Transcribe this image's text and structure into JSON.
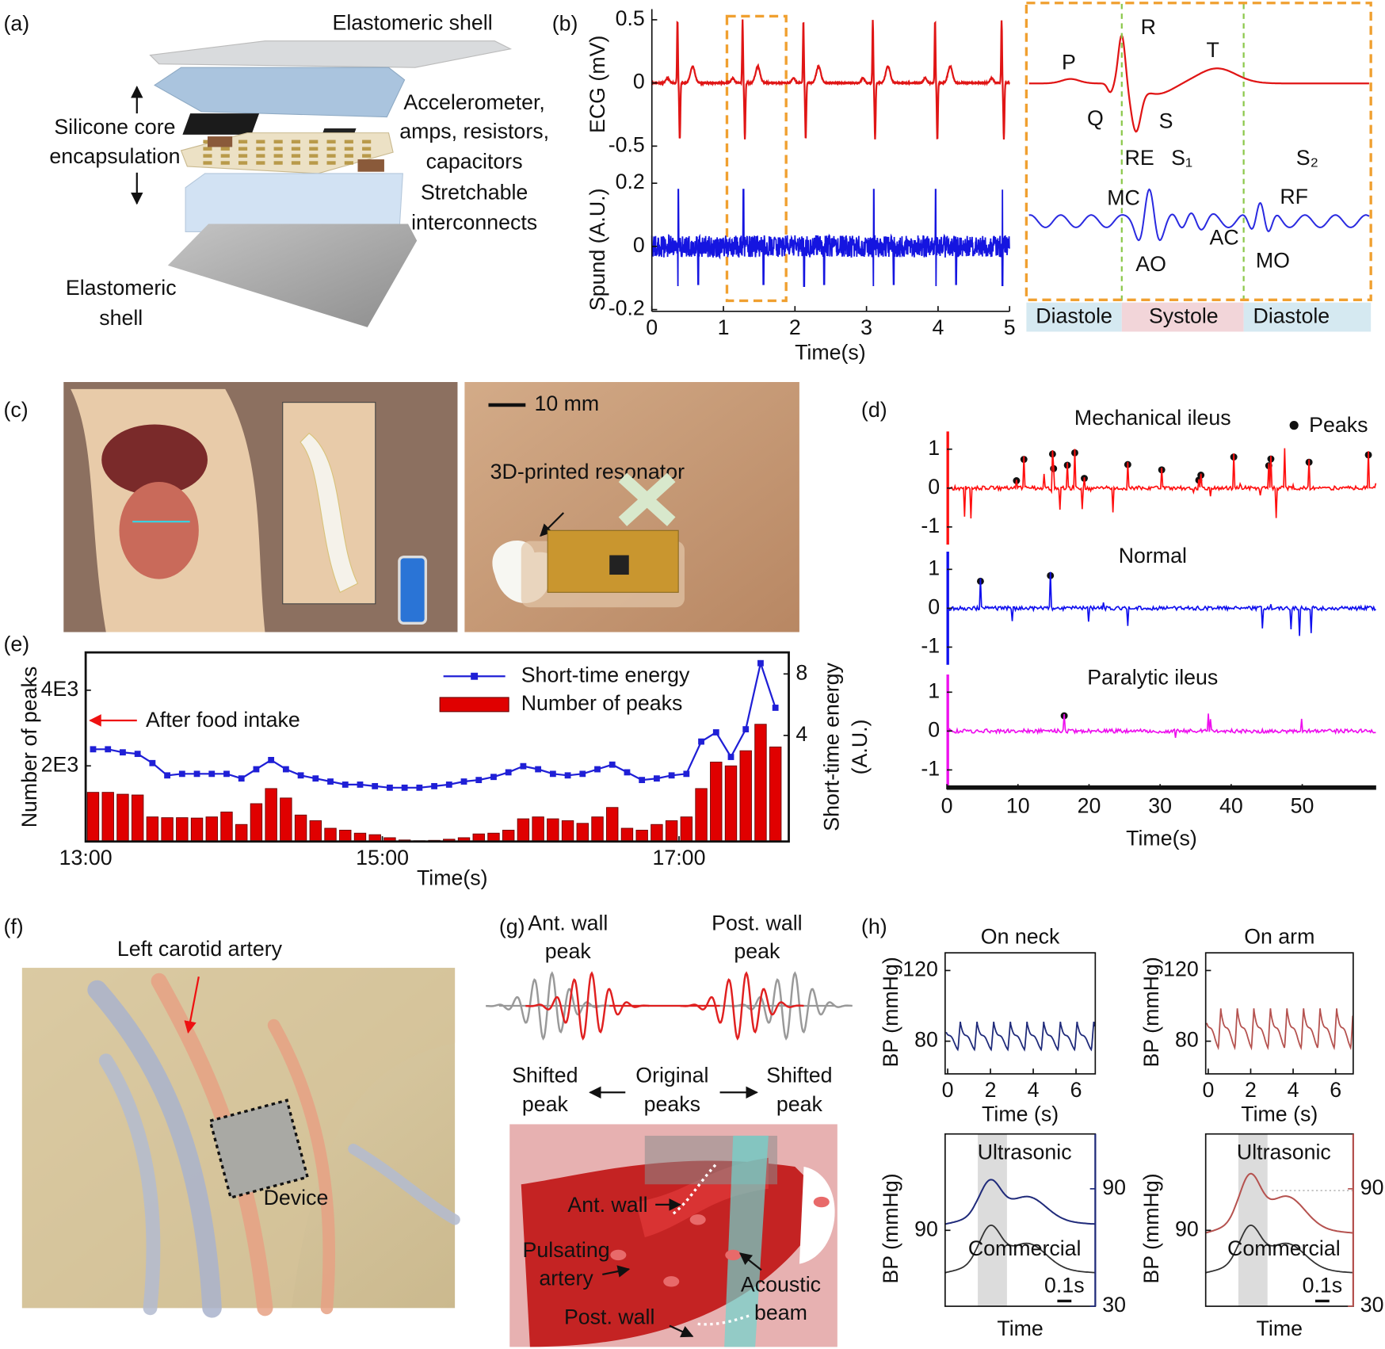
{
  "panels": {
    "a": {
      "label": "(a)",
      "top_shell": "Elastomeric shell",
      "core": [
        "Silicone core",
        "encapsulation"
      ],
      "components": [
        "Accelerometer,",
        "amps, resistors,",
        "capacitors"
      ],
      "interconnects": [
        "Stretchable",
        "interconnects"
      ],
      "bottom_shell": [
        "Elastomeric",
        "shell"
      ]
    },
    "b": {
      "label": "(b)",
      "xlim": [
        0,
        5
      ],
      "xticks": [
        0,
        1,
        2,
        3,
        4,
        5
      ],
      "xlabel": "Time(s)",
      "ecg": {
        "ylabel": "ECG (mV)",
        "ylim": [
          -0.5,
          0.5
        ],
        "yticks": [
          0.5,
          0,
          -0.5
        ]
      },
      "sound": {
        "ylabel": "Spund (A.U.)",
        "ylim": [
          -0.2,
          0.2
        ],
        "yticks": [
          0.2,
          0,
          -0.2
        ]
      },
      "inset_labels": [
        "P",
        "R",
        "T",
        "Q",
        "S",
        "RE",
        "S₁",
        "S₂",
        "MC",
        "RF",
        "AC",
        "AO",
        "MO"
      ],
      "phases": [
        "Diastole",
        "Systole",
        "Diastole"
      ]
    },
    "c": {
      "label": "(c)",
      "scale_bar": "10 mm",
      "resonator": "3D-printed resonator"
    },
    "d": {
      "label": "(d)",
      "legend": "Peaks",
      "xlabel": "Time(s)",
      "xlim": [
        0,
        60.4
      ],
      "xticks": [
        0,
        10,
        20,
        30,
        40,
        50
      ],
      "subplots": [
        {
          "title": "Mechanical ileus",
          "color": "#ff1010",
          "ylim": [
            -1.5,
            1.5
          ],
          "yticks": [
            1,
            0,
            -1
          ]
        },
        {
          "title": "Normal",
          "color": "#1010ee",
          "ylim": [
            -1.5,
            1.5
          ],
          "yticks": [
            1,
            0,
            -1
          ]
        },
        {
          "title": "Paralytic ileus",
          "color": "#ee10ee",
          "ylim": [
            -1.5,
            1.5
          ],
          "yticks": [
            1,
            0,
            -1
          ]
        }
      ]
    },
    "e": {
      "label": "(e)",
      "annotation": "After food intake",
      "chart": {
        "type": "bar",
        "x": [
          13.05,
          13.15,
          13.25,
          13.35,
          13.45,
          13.55,
          13.65,
          13.75,
          13.85,
          13.95,
          14.05,
          14.15,
          14.25,
          14.35,
          14.45,
          14.55,
          14.65,
          14.75,
          14.85,
          14.95,
          15.05,
          15.15,
          15.25,
          15.35,
          15.45,
          15.55,
          15.65,
          15.75,
          15.85,
          15.95,
          16.05,
          16.15,
          16.25,
          16.35,
          16.45,
          16.55,
          16.65,
          16.75,
          16.85,
          16.95,
          17.05,
          17.15,
          17.25,
          17.35,
          17.45,
          17.55,
          17.65
        ],
        "series": [
          {
            "name": "Short-time energy",
            "type": "line",
            "axis": "y2",
            "color": "#1f1fd6",
            "values": [
              3.1,
              3.1,
              2.9,
              2.8,
              2.2,
              1.4,
              1.5,
              1.5,
              1.5,
              1.5,
              1.2,
              1.8,
              2.4,
              1.8,
              1.4,
              1.2,
              1.0,
              0.8,
              0.8,
              0.7,
              0.6,
              0.6,
              0.6,
              0.7,
              0.8,
              1.0,
              1.1,
              1.3,
              1.6,
              2.0,
              1.8,
              1.5,
              1.4,
              1.5,
              1.8,
              2.1,
              1.6,
              1.1,
              1.2,
              1.4,
              1.5,
              3.6,
              4.2,
              2.6,
              4.4,
              8.7,
              5.8
            ]
          },
          {
            "name": "Number of peaks",
            "type": "bar",
            "color": "#e00000",
            "values": [
              1300,
              1300,
              1250,
              1230,
              650,
              630,
              630,
              620,
              650,
              780,
              450,
              1000,
              1400,
              1150,
              700,
              550,
              350,
              300,
              220,
              180,
              100,
              40,
              20,
              30,
              60,
              100,
              200,
              220,
              300,
              600,
              650,
              600,
              550,
              480,
              650,
              900,
              350,
              300,
              450,
              550,
              650,
              1400,
              2100,
              2000,
              2400,
              3100,
              2500
            ]
          }
        ],
        "xlim": [
          13,
          17.74
        ],
        "xticks": [
          {
            "value": 13,
            "label": "13:00"
          },
          {
            "value": 15,
            "label": "15:00"
          },
          {
            "value": 17,
            "label": "17:00"
          }
        ],
        "ylim": [
          0,
          5000
        ],
        "yticks": [
          {
            "value": 2000,
            "label": "2E3"
          },
          {
            "value": 4000,
            "label": "4E3"
          }
        ],
        "y2lim": [
          -2.9,
          9.4
        ],
        "y2ticks": [
          4,
          8
        ],
        "xlabel": "Time(s)",
        "ylabel": "Number of peaks",
        "y2label": [
          "Short-time energy",
          "(A.U.)"
        ]
      }
    },
    "f": {
      "label": "(f)",
      "artery": "Left carotid artery",
      "device": "Device"
    },
    "g": {
      "label": "(g)",
      "ant_peak": [
        "Ant. wall",
        "peak"
      ],
      "post_peak": [
        "Post. wall",
        "peak"
      ],
      "shifted_left": [
        "Shifted",
        "peak"
      ],
      "original": [
        "Original",
        "peaks"
      ],
      "shifted_right": [
        "Shifted",
        "peak"
      ],
      "ant_wall": "Ant. wall",
      "artery": [
        "Pulsating",
        "artery"
      ],
      "beam": [
        "Acoustic",
        "beam"
      ],
      "post_wall": "Post. wall"
    },
    "h": {
      "label": "(h)",
      "plots": [
        {
          "title": "On neck",
          "color": "#1f2a7a",
          "ylabel": "BP (mmHg)",
          "ylim": [
            61.5,
            130
          ],
          "yticks": [
            120,
            80
          ],
          "xlim": [
            -0.12,
            6.9
          ],
          "xticks": [
            0,
            2,
            4,
            6
          ],
          "xlabel": "Time (s)"
        },
        {
          "title": "On arm",
          "color": "#b5524f",
          "ylabel": "BP (mmHg)",
          "ylim": [
            61.5,
            130
          ],
          "yticks": [
            120,
            80
          ],
          "xlim": [
            -0.12,
            6.83
          ],
          "xticks": [
            0,
            2,
            4,
            6
          ],
          "xlabel": "Time (s)"
        }
      ],
      "zoom": [
        {
          "ultrasonic": "Ultrasonic",
          "commercial": "Commercial",
          "scale": "0.1s",
          "xlabel": "Time",
          "ylabel": "BP (mmHg)",
          "color": "#1f2a7a",
          "ylim": [
            64,
            123
          ],
          "yticks": [
            90
          ],
          "y2lim": [
            30,
            118
          ],
          "y2ticks": [
            90,
            30
          ]
        },
        {
          "ultrasonic": "Ultrasonic",
          "commercial": "Commercial",
          "scale": "0.1s",
          "xlabel": "Time",
          "ylabel": "BP (mmHg)",
          "color": "#b5524f",
          "ylim": [
            64,
            123
          ],
          "yticks": [
            90
          ],
          "y2lim": [
            30,
            118
          ],
          "y2ticks": [
            90,
            30
          ]
        }
      ]
    }
  }
}
